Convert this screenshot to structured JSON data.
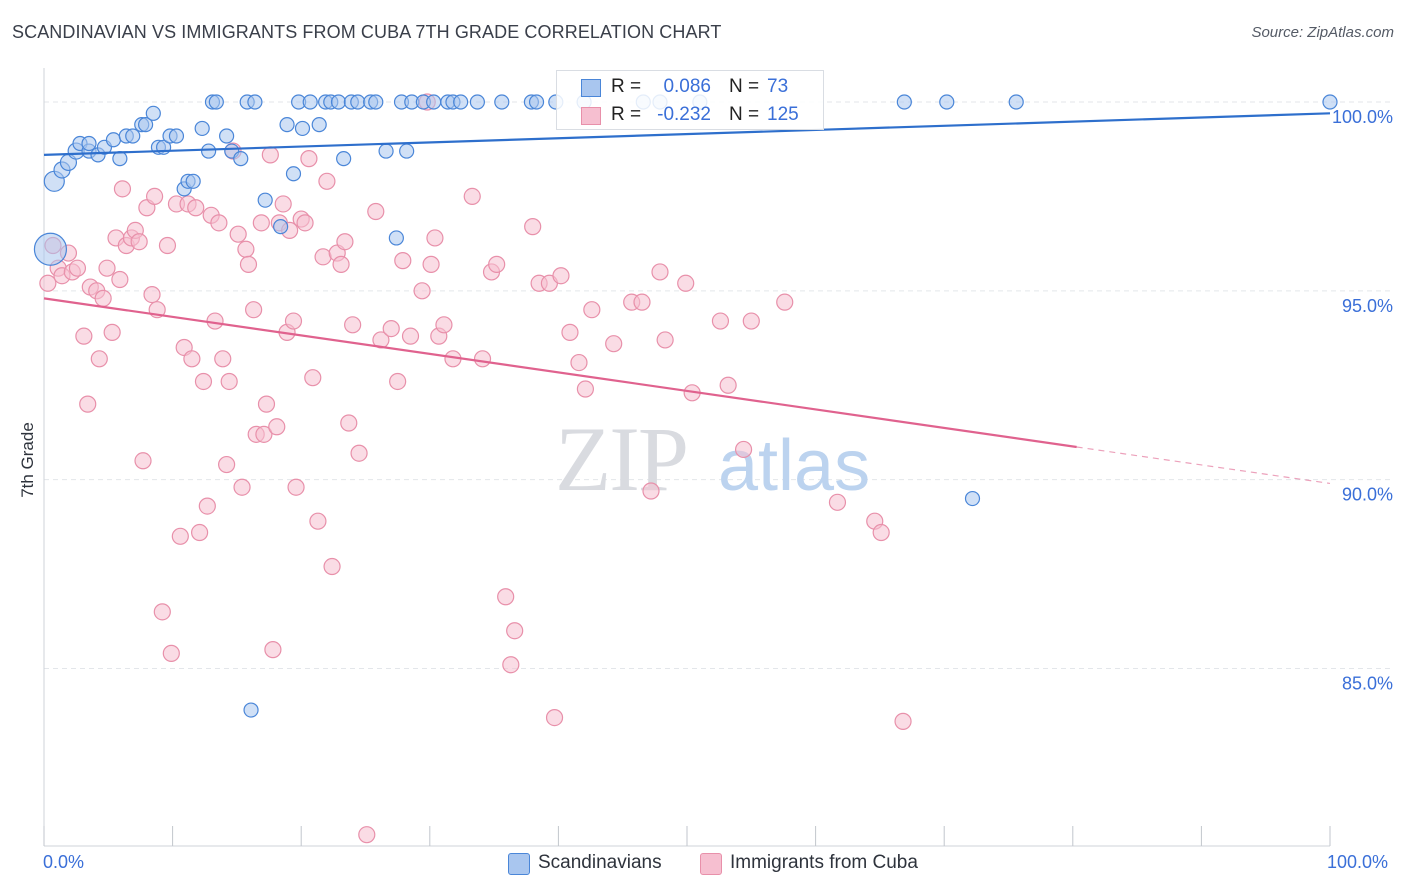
{
  "title": "SCANDINAVIAN VS IMMIGRANTS FROM CUBA 7TH GRADE CORRELATION CHART",
  "source": "Source: ZipAtlas.com",
  "watermark": {
    "zip": "ZIP",
    "atlas": "atlas"
  },
  "colors": {
    "blue_fill": "#a9c6ef",
    "blue_stroke": "#4a86d8",
    "blue_line": "#2e6fcc",
    "pink_fill": "#f6bfd0",
    "pink_stroke": "#e890aa",
    "pink_line": "#e0628e",
    "tick_text": "#3a6fd8",
    "grid": "#e3e6ea"
  },
  "legend": {
    "rows": [
      {
        "r_label": "R =",
        "r_value": "0.086",
        "n_label": "N =",
        "n_value": "73"
      },
      {
        "r_label": "R =",
        "r_value": "-0.232",
        "n_label": "N =",
        "n_value": "125"
      }
    ]
  },
  "bottom_legend": [
    "Scandinavians",
    "Immigrants from Cuba"
  ],
  "chart_data": {
    "type": "scatter",
    "title": "SCANDINAVIAN VS IMMIGRANTS FROM CUBA 7TH GRADE CORRELATION CHART",
    "xlabel": "",
    "ylabel": "7th Grade",
    "xlim": [
      0,
      100
    ],
    "ylim": [
      80.3,
      100.9
    ],
    "x_tick_labels": [
      "0.0%",
      "100.0%"
    ],
    "y_ticks": [
      85,
      90,
      95,
      100
    ],
    "y_tick_labels": [
      "85.0%",
      "90.0%",
      "95.0%",
      "100.0%"
    ],
    "grid": true,
    "legend_position": "top-center",
    "series": [
      {
        "name": "Scandinavians",
        "R": 0.086,
        "N": 73,
        "trend": {
          "x": [
            0,
            100
          ],
          "y": [
            98.6,
            99.7
          ],
          "solid_to": 100
        },
        "points": [
          [
            0.5,
            96.1,
            16
          ],
          [
            0.8,
            97.9,
            10
          ],
          [
            1.4,
            98.2,
            8
          ],
          [
            1.9,
            98.4,
            8
          ],
          [
            2.5,
            98.7,
            8
          ],
          [
            2.8,
            98.9,
            7
          ],
          [
            3.5,
            98.7,
            7
          ],
          [
            3.5,
            98.9,
            7
          ],
          [
            4.2,
            98.6,
            7
          ],
          [
            4.7,
            98.8,
            7
          ],
          [
            5.4,
            99.0,
            7
          ],
          [
            5.9,
            98.5,
            7
          ],
          [
            6.4,
            99.1,
            7
          ],
          [
            6.9,
            99.1,
            7
          ],
          [
            7.6,
            99.4,
            7
          ],
          [
            7.9,
            99.4,
            7
          ],
          [
            8.5,
            99.7,
            7
          ],
          [
            8.9,
            98.8,
            7
          ],
          [
            9.3,
            98.8,
            7
          ],
          [
            9.8,
            99.1,
            7
          ],
          [
            10.3,
            99.1,
            7
          ],
          [
            10.9,
            97.7,
            7
          ],
          [
            11.2,
            97.9,
            7
          ],
          [
            11.6,
            97.9,
            7
          ],
          [
            12.3,
            99.3,
            7
          ],
          [
            12.8,
            98.7,
            7
          ],
          [
            13.1,
            100.0,
            7
          ],
          [
            13.4,
            100.0,
            7
          ],
          [
            14.2,
            99.1,
            7
          ],
          [
            14.6,
            98.7,
            7
          ],
          [
            15.3,
            98.5,
            7
          ],
          [
            15.8,
            100.0,
            7
          ],
          [
            16.4,
            100.0,
            7
          ],
          [
            17.2,
            97.4,
            7
          ],
          [
            18.4,
            96.7,
            7
          ],
          [
            18.9,
            99.4,
            7
          ],
          [
            19.4,
            98.1,
            7
          ],
          [
            19.8,
            100.0,
            7
          ],
          [
            20.1,
            99.3,
            7
          ],
          [
            20.7,
            100.0,
            7
          ],
          [
            21.4,
            99.4,
            7
          ],
          [
            21.9,
            100.0,
            7
          ],
          [
            22.3,
            100.0,
            7
          ],
          [
            22.9,
            100.0,
            7
          ],
          [
            23.3,
            98.5,
            7
          ],
          [
            23.9,
            100.0,
            7
          ],
          [
            24.4,
            100.0,
            7
          ],
          [
            25.4,
            100.0,
            7
          ],
          [
            25.8,
            100.0,
            7
          ],
          [
            26.6,
            98.7,
            7
          ],
          [
            27.4,
            96.4,
            7
          ],
          [
            27.8,
            100.0,
            7
          ],
          [
            28.2,
            98.7,
            7
          ],
          [
            28.6,
            100.0,
            7
          ],
          [
            29.5,
            100.0,
            7
          ],
          [
            30.3,
            100.0,
            7
          ],
          [
            31.4,
            100.0,
            7
          ],
          [
            31.8,
            100.0,
            7
          ],
          [
            32.4,
            100.0,
            7
          ],
          [
            33.7,
            100.0,
            7
          ],
          [
            35.6,
            100.0,
            7
          ],
          [
            37.9,
            100.0,
            7
          ],
          [
            38.3,
            100.0,
            7
          ],
          [
            39.8,
            100.0,
            7
          ],
          [
            42.0,
            100.0,
            7
          ],
          [
            46.6,
            100.0,
            7
          ],
          [
            47.9,
            100.0,
            7
          ],
          [
            51.0,
            100.0,
            7
          ],
          [
            16.1,
            83.9,
            7
          ],
          [
            66.9,
            100.0,
            7
          ],
          [
            70.2,
            100.0,
            7
          ],
          [
            72.2,
            89.5,
            7
          ],
          [
            75.6,
            100.0,
            7
          ],
          [
            100.0,
            100.0,
            7
          ]
        ]
      },
      {
        "name": "Immigrants from Cuba",
        "R": -0.232,
        "N": 125,
        "trend": {
          "x": [
            0,
            100
          ],
          "y": [
            94.8,
            89.9
          ],
          "solid_to": 80.3
        },
        "points": [
          [
            0.3,
            95.2,
            8
          ],
          [
            0.7,
            96.2,
            8
          ],
          [
            1.1,
            95.6,
            8
          ],
          [
            1.4,
            95.4,
            8
          ],
          [
            1.9,
            96.0,
            8
          ],
          [
            2.2,
            95.5,
            8
          ],
          [
            2.6,
            95.6,
            8
          ],
          [
            3.1,
            93.8,
            8
          ],
          [
            3.4,
            92.0,
            8
          ],
          [
            3.6,
            95.1,
            8
          ],
          [
            4.1,
            95.0,
            8
          ],
          [
            4.3,
            93.2,
            8
          ],
          [
            4.6,
            94.8,
            8
          ],
          [
            4.9,
            95.6,
            8
          ],
          [
            5.3,
            93.9,
            8
          ],
          [
            5.6,
            96.4,
            8
          ],
          [
            5.9,
            95.3,
            8
          ],
          [
            6.1,
            97.7,
            8
          ],
          [
            6.4,
            96.2,
            8
          ],
          [
            6.8,
            96.4,
            8
          ],
          [
            7.1,
            96.6,
            8
          ],
          [
            7.4,
            96.3,
            8
          ],
          [
            7.7,
            90.5,
            8
          ],
          [
            8.0,
            97.2,
            8
          ],
          [
            8.4,
            94.9,
            8
          ],
          [
            8.6,
            97.5,
            8
          ],
          [
            8.8,
            94.5,
            8
          ],
          [
            9.2,
            86.5,
            8
          ],
          [
            9.6,
            96.2,
            8
          ],
          [
            9.9,
            85.4,
            8
          ],
          [
            10.3,
            97.3,
            8
          ],
          [
            10.6,
            88.5,
            8
          ],
          [
            10.9,
            93.5,
            8
          ],
          [
            11.2,
            97.3,
            8
          ],
          [
            11.5,
            93.2,
            8
          ],
          [
            11.8,
            97.2,
            8
          ],
          [
            12.1,
            88.6,
            8
          ],
          [
            12.4,
            92.6,
            8
          ],
          [
            12.7,
            89.3,
            8
          ],
          [
            13.0,
            97.0,
            8
          ],
          [
            13.3,
            94.2,
            8
          ],
          [
            13.6,
            96.8,
            8
          ],
          [
            13.9,
            93.2,
            8
          ],
          [
            14.2,
            90.4,
            8
          ],
          [
            14.4,
            92.6,
            8
          ],
          [
            14.7,
            98.7,
            8
          ],
          [
            15.1,
            96.5,
            8
          ],
          [
            15.4,
            89.8,
            8
          ],
          [
            15.7,
            96.1,
            8
          ],
          [
            15.9,
            95.7,
            8
          ],
          [
            16.3,
            94.5,
            8
          ],
          [
            16.5,
            91.2,
            8
          ],
          [
            16.9,
            96.8,
            8
          ],
          [
            17.1,
            91.2,
            8
          ],
          [
            17.3,
            92.0,
            8
          ],
          [
            17.6,
            98.6,
            8
          ],
          [
            17.8,
            85.5,
            8
          ],
          [
            18.1,
            91.4,
            8
          ],
          [
            18.3,
            96.8,
            8
          ],
          [
            18.6,
            97.3,
            8
          ],
          [
            18.9,
            93.9,
            8
          ],
          [
            19.1,
            96.6,
            8
          ],
          [
            19.4,
            94.2,
            8
          ],
          [
            19.6,
            89.8,
            8
          ],
          [
            20.0,
            96.9,
            8
          ],
          [
            20.3,
            96.8,
            8
          ],
          [
            20.6,
            98.5,
            8
          ],
          [
            20.9,
            92.7,
            8
          ],
          [
            21.3,
            88.9,
            8
          ],
          [
            21.7,
            95.9,
            8
          ],
          [
            22.0,
            97.9,
            8
          ],
          [
            22.4,
            87.7,
            8
          ],
          [
            22.8,
            96.0,
            8
          ],
          [
            23.1,
            95.7,
            8
          ],
          [
            23.4,
            96.3,
            8
          ],
          [
            23.7,
            91.5,
            8
          ],
          [
            24.0,
            94.1,
            8
          ],
          [
            24.5,
            90.7,
            8
          ],
          [
            25.1,
            80.6,
            8
          ],
          [
            25.8,
            97.1,
            8
          ],
          [
            26.2,
            93.7,
            8
          ],
          [
            27.0,
            94.0,
            8
          ],
          [
            27.5,
            92.6,
            8
          ],
          [
            27.9,
            95.8,
            8
          ],
          [
            28.5,
            93.8,
            8
          ],
          [
            29.4,
            95.0,
            8
          ],
          [
            29.8,
            100.0,
            8
          ],
          [
            30.1,
            95.7,
            8
          ],
          [
            30.4,
            96.4,
            8
          ],
          [
            30.7,
            93.8,
            8
          ],
          [
            31.1,
            94.1,
            8
          ],
          [
            31.8,
            93.2,
            8
          ],
          [
            33.3,
            97.5,
            8
          ],
          [
            34.1,
            93.2,
            8
          ],
          [
            34.8,
            95.5,
            8
          ],
          [
            35.2,
            95.7,
            8
          ],
          [
            35.9,
            86.9,
            8
          ],
          [
            36.3,
            85.1,
            8
          ],
          [
            36.6,
            86.0,
            8
          ],
          [
            38.0,
            96.7,
            8
          ],
          [
            38.5,
            95.2,
            8
          ],
          [
            39.3,
            95.2,
            8
          ],
          [
            39.7,
            83.7,
            8
          ],
          [
            40.2,
            95.4,
            8
          ],
          [
            40.9,
            93.9,
            8
          ],
          [
            41.6,
            93.1,
            8
          ],
          [
            42.1,
            92.4,
            8
          ],
          [
            42.6,
            94.5,
            8
          ],
          [
            44.3,
            93.6,
            8
          ],
          [
            45.7,
            94.7,
            8
          ],
          [
            46.5,
            94.7,
            8
          ],
          [
            47.2,
            89.7,
            8
          ],
          [
            47.9,
            95.5,
            8
          ],
          [
            48.3,
            93.7,
            8
          ],
          [
            49.9,
            95.2,
            8
          ],
          [
            50.4,
            92.3,
            8
          ],
          [
            52.6,
            94.2,
            8
          ],
          [
            53.2,
            92.5,
            8
          ],
          [
            54.4,
            90.8,
            8
          ],
          [
            55.0,
            94.2,
            8
          ],
          [
            57.6,
            94.7,
            8
          ],
          [
            61.7,
            89.4,
            8
          ],
          [
            64.6,
            88.9,
            8
          ],
          [
            65.1,
            88.6,
            8
          ],
          [
            66.8,
            83.6,
            8
          ]
        ]
      }
    ]
  }
}
